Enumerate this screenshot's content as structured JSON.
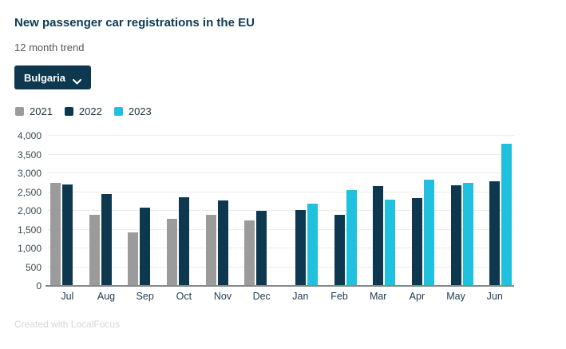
{
  "header": {
    "title": "New passenger car registrations in the EU",
    "subtitle": "12 month trend"
  },
  "country_selector": {
    "label": "Bulgaria"
  },
  "footer": {
    "credit": "Created with LocalFocus"
  },
  "colors": {
    "accent_dark": "#0d3850",
    "series_2021": "#9b9b9b",
    "series_2022": "#0d3850",
    "series_2023": "#20c0df",
    "gridline": "#ececec",
    "baseline": "#85898d"
  },
  "chart_data": {
    "type": "bar",
    "title": "New passenger car registrations in the EU",
    "subtitle": "12 month trend",
    "categories": [
      "Jul",
      "Aug",
      "Sep",
      "Oct",
      "Nov",
      "Dec",
      "Jan",
      "Feb",
      "Mar",
      "Apr",
      "May",
      "Jun"
    ],
    "series": [
      {
        "name": "2021",
        "color": "#9b9b9b",
        "values": [
          2750,
          1900,
          1420,
          1780,
          1900,
          1750,
          null,
          null,
          null,
          null,
          null,
          null
        ]
      },
      {
        "name": "2022",
        "color": "#0d3850",
        "values": [
          2710,
          2450,
          2090,
          2360,
          2280,
          2000,
          2020,
          1900,
          2660,
          2350,
          2680,
          2790
        ]
      },
      {
        "name": "2023",
        "color": "#20c0df",
        "values": [
          null,
          null,
          null,
          null,
          null,
          null,
          2190,
          2550,
          2290,
          2830,
          2740,
          3780
        ]
      }
    ],
    "xlabel": "",
    "ylabel": "",
    "ylim": [
      0,
      4000
    ],
    "ytick_step": 500,
    "grid": true,
    "legend_position": "top-left"
  }
}
